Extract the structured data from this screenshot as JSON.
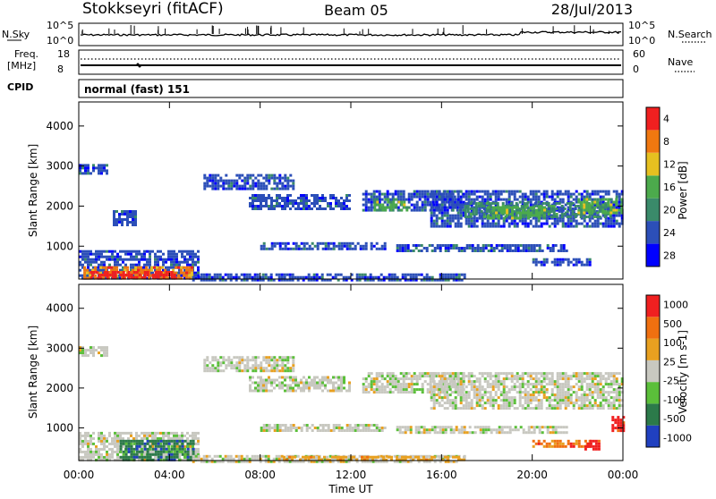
{
  "header": {
    "station": "Stokkseyri (fitACF)",
    "beam": "Beam 05",
    "date": "28/Jul/2013"
  },
  "noise_panel": {
    "left_label": "N.Sky",
    "right_label": "N.Search",
    "yticks": [
      "10^5",
      "10^0"
    ]
  },
  "freq_panel": {
    "left_label_line1": "Freq.",
    "left_label_line2": "[MHz]",
    "left_ticks": [
      "18",
      "8"
    ],
    "right_label": "Nave",
    "right_ticks": [
      "60",
      "0"
    ],
    "cpid_label": "CPID"
  },
  "cpid_panel": {
    "text": "normal (fast) 151"
  },
  "x_axis": {
    "title": "Time UT",
    "ticks": [
      "00:00",
      "04:00",
      "08:00",
      "12:00",
      "16:00",
      "20:00",
      "00:00"
    ]
  },
  "chart_data": [
    {
      "type": "heatmap",
      "name": "power",
      "ylabel": "Slant Range [km]",
      "yticks": [
        "1000",
        "2000",
        "3000",
        "4000"
      ],
      "colorbar": {
        "label": "Power [dB]",
        "ticks": [
          "4",
          "8",
          "12",
          "16",
          "20",
          "24",
          "28"
        ],
        "colors": [
          "#0000ff",
          "#2c4fb8",
          "#3a8a6a",
          "#4caa4c",
          "#e6c020",
          "#f07810",
          "#f02020"
        ]
      },
      "xlim": [
        0,
        24
      ],
      "ylim": [
        180,
        4600
      ],
      "regions": [
        {
          "t0": 0.0,
          "t1": 5.3,
          "r0": 180,
          "r1": 900,
          "c": 1
        },
        {
          "t0": 0.2,
          "t1": 5.0,
          "r0": 180,
          "r1": 500,
          "c": 5
        },
        {
          "t0": 0.5,
          "t1": 4.2,
          "r0": 180,
          "r1": 380,
          "c": 6
        },
        {
          "t0": 5.0,
          "t1": 17.0,
          "r0": 180,
          "r1": 320,
          "c": 1
        },
        {
          "t0": 0.0,
          "t1": 1.2,
          "r0": 2800,
          "r1": 3050,
          "c": 1
        },
        {
          "t0": 1.5,
          "t1": 2.5,
          "r0": 1500,
          "r1": 1900,
          "c": 1
        },
        {
          "t0": 5.5,
          "t1": 9.5,
          "r0": 2400,
          "r1": 2800,
          "c": 1
        },
        {
          "t0": 7.5,
          "t1": 12.0,
          "r0": 1900,
          "r1": 2300,
          "c": 1
        },
        {
          "t0": 8.0,
          "t1": 13.5,
          "r0": 900,
          "r1": 1100,
          "c": 1
        },
        {
          "t0": 12.5,
          "t1": 17.0,
          "r0": 1900,
          "r1": 2400,
          "c": 1
        },
        {
          "t0": 13.0,
          "t1": 14.5,
          "r0": 1900,
          "r1": 2200,
          "c": 3
        },
        {
          "t0": 15.5,
          "t1": 24.0,
          "r0": 1500,
          "r1": 2400,
          "c": 1
        },
        {
          "t0": 17.0,
          "t1": 23.5,
          "r0": 1700,
          "r1": 2100,
          "c": 2
        },
        {
          "t0": 18.0,
          "t1": 20.5,
          "r0": 1700,
          "r1": 2000,
          "c": 3
        },
        {
          "t0": 22.0,
          "t1": 24.0,
          "r0": 1800,
          "r1": 2200,
          "c": 3
        },
        {
          "t0": 14.0,
          "t1": 21.5,
          "r0": 900,
          "r1": 1050,
          "c": 1
        },
        {
          "t0": 20.0,
          "t1": 22.5,
          "r0": 500,
          "r1": 700,
          "c": 1
        }
      ]
    },
    {
      "type": "heatmap",
      "name": "velocity",
      "ylabel": "Slant Range [km]",
      "yticks": [
        "1000",
        "2000",
        "3000",
        "4000"
      ],
      "colorbar": {
        "label": "Velocity [m s-1]",
        "ticks": [
          "1000",
          "500",
          "100",
          "25",
          "-25",
          "-100",
          "-500",
          "-1000"
        ],
        "colors": [
          "#2040c0",
          "#2c7a4a",
          "#5bbf3a",
          "#c8c8c0",
          "#e8a020",
          "#f07010",
          "#f02020"
        ]
      },
      "xlim": [
        0,
        24
      ],
      "ylim": [
        180,
        4600
      ],
      "regions": [
        {
          "t0": 0.0,
          "t1": 5.3,
          "r0": 180,
          "r1": 900,
          "c": 3
        },
        {
          "t0": 1.8,
          "t1": 5.0,
          "r0": 180,
          "r1": 700,
          "c": 1
        },
        {
          "t0": 5.0,
          "t1": 17.0,
          "r0": 180,
          "r1": 320,
          "c": 3
        },
        {
          "t0": 9.0,
          "t1": 17.0,
          "r0": 180,
          "r1": 300,
          "c": 4
        },
        {
          "t0": 0.0,
          "t1": 1.2,
          "r0": 2800,
          "r1": 3050,
          "c": 3
        },
        {
          "t0": 5.5,
          "t1": 9.5,
          "r0": 2400,
          "r1": 2800,
          "c": 3
        },
        {
          "t0": 7.5,
          "t1": 12.0,
          "r0": 1900,
          "r1": 2300,
          "c": 3
        },
        {
          "t0": 8.0,
          "t1": 13.5,
          "r0": 900,
          "r1": 1100,
          "c": 3
        },
        {
          "t0": 12.5,
          "t1": 17.0,
          "r0": 1900,
          "r1": 2400,
          "c": 3
        },
        {
          "t0": 15.5,
          "t1": 24.0,
          "r0": 1500,
          "r1": 2400,
          "c": 3
        },
        {
          "t0": 14.0,
          "t1": 21.5,
          "r0": 900,
          "r1": 1050,
          "c": 3
        },
        {
          "t0": 20.0,
          "t1": 22.5,
          "r0": 500,
          "r1": 700,
          "c": 5
        },
        {
          "t0": 22.3,
          "t1": 22.9,
          "r0": 450,
          "r1": 700,
          "c": 6
        },
        {
          "t0": 23.5,
          "t1": 24.0,
          "r0": 900,
          "r1": 1300,
          "c": 6
        }
      ]
    }
  ]
}
